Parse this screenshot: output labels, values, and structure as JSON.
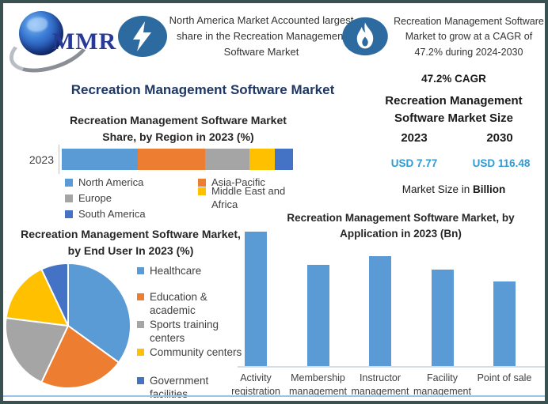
{
  "colors": {
    "frame_border": "#3A5151",
    "title_navy": "#1F3864",
    "icon_ellipse_blue": "#2D6A9F",
    "usd_value_blue": "#2E9BD5",
    "bottom_rule_blue": "#9DC3E6",
    "bar_blue": "#5B9BD5",
    "series_palette": [
      "#5B9BD5",
      "#ED7D31",
      "#A5A5A5",
      "#FFC000",
      "#4472C4"
    ]
  },
  "header": {
    "logo_text": "MMR",
    "highlight_left": "North America Market Accounted largest share in the Recreation Management Software Market",
    "highlight_right": "Recreation Management Software Market to grow at a CAGR of 47.2% during 2024-2030"
  },
  "main_title": "Recreation Management Software Market",
  "market_size_panel": {
    "cagr": "47.2% CAGR",
    "title": "Recreation Management Software Market Size",
    "year_left": "2023",
    "year_right": "2030",
    "value_left": "USD 7.77",
    "value_right": "USD 116.48",
    "note_prefix": "Market Size in ",
    "note_bold": "Billion"
  },
  "chart_data": [
    {
      "type": "bar",
      "subtype": "horizontal-stacked",
      "title": "Recreation Management Software Market Share, by Region in 2023 (%)",
      "categories": [
        "2023"
      ],
      "series": [
        {
          "name": "North America",
          "values": [
            33
          ],
          "color": "#5B9BD5"
        },
        {
          "name": "Asia-Pacific",
          "values": [
            29
          ],
          "color": "#ED7D31"
        },
        {
          "name": "Europe",
          "values": [
            19
          ],
          "color": "#A5A5A5"
        },
        {
          "name": "Middle East and Africa",
          "values": [
            11
          ],
          "color": "#FFC000"
        },
        {
          "name": "South America",
          "values": [
            8
          ],
          "color": "#4472C4"
        }
      ],
      "xlim": [
        0,
        100
      ],
      "legend_position": "bottom",
      "value_note": "segment shares estimated from bar widths; no data labels shown"
    },
    {
      "type": "pie",
      "title": "Recreation Management Software Market, by End User In 2023 (%)",
      "labels": [
        "Healthcare",
        "Education & academic",
        "Sports training centers",
        "Community centers",
        "Government facilities"
      ],
      "values": [
        35,
        22,
        20,
        16,
        7
      ],
      "colors": [
        "#5B9BD5",
        "#ED7D31",
        "#A5A5A5",
        "#FFC000",
        "#4472C4"
      ],
      "start_angle_deg": 0,
      "direction": "clockwise",
      "legend_position": "right",
      "value_note": "slice percentages estimated from angles; no data labels shown"
    },
    {
      "type": "bar",
      "subtype": "vertical",
      "title": "Recreation Management Software Market, by Application in 2023 (Bn)",
      "categories": [
        "Activity registration",
        "Membership management",
        "Instructor management",
        "Facility management",
        "Point of sale"
      ],
      "values": [
        1.0,
        0.75,
        0.82,
        0.72,
        0.63
      ],
      "bar_color": "#5B9BD5",
      "grid": false,
      "value_note": "no value axis or data labels shown; values are relative bar heights (tallest = 1.0)"
    }
  ]
}
